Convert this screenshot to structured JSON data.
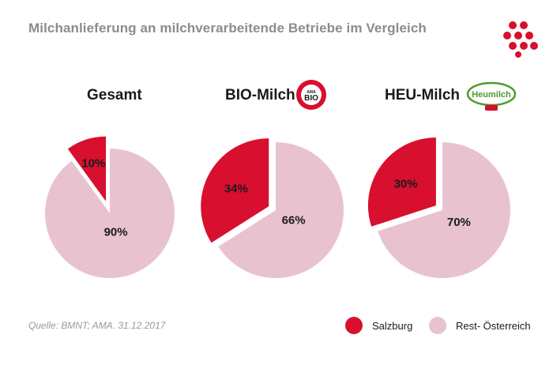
{
  "title": "Milchanlieferung an milchverarbeitende Betriebe im Vergleich",
  "source": "Quelle: BMNT; AMA. 31.12.2017",
  "badges": {
    "bio_lines": [
      "AMA",
      "BIO"
    ],
    "heu_text": "Heumilch"
  },
  "colors": {
    "salzburg": "#d80f2e",
    "rest": "#e9c2d0"
  },
  "legend": [
    {
      "label": "Salzburg",
      "color": "#d80f2e"
    },
    {
      "label": "Rest- Österreich",
      "color": "#e9c2d0"
    }
  ],
  "chart_data": [
    {
      "type": "pie",
      "title": "Gesamt",
      "categories": [
        "Salzburg",
        "Rest- Österreich"
      ],
      "values": [
        10,
        90
      ],
      "labels": [
        "10%",
        "90%"
      ],
      "exploded": "Salzburg"
    },
    {
      "type": "pie",
      "title": "BIO-Milch",
      "categories": [
        "Salzburg",
        "Rest- Österreich"
      ],
      "values": [
        34,
        66
      ],
      "labels": [
        "34%",
        "66%"
      ],
      "exploded": "Salzburg"
    },
    {
      "type": "pie",
      "title": "HEU-Milch",
      "categories": [
        "Salzburg",
        "Rest- Österreich"
      ],
      "values": [
        30,
        70
      ],
      "labels": [
        "30%",
        "70%"
      ],
      "exploded": "Salzburg"
    }
  ]
}
